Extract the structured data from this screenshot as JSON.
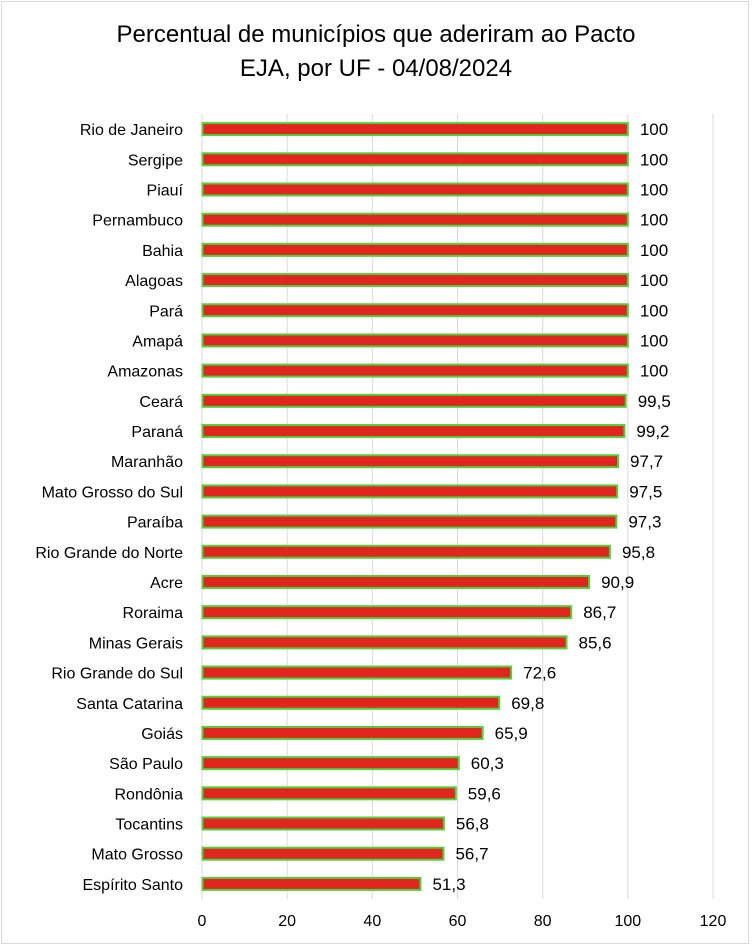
{
  "chart_data": {
    "type": "bar",
    "orientation": "horizontal",
    "title_lines": [
      "Percentual de municípios que aderiram ao Pacto",
      "EJA, por UF - 04/08/2024"
    ],
    "categories": [
      "Rio de Janeiro",
      "Sergipe",
      "Piauí",
      "Pernambuco",
      "Bahia",
      "Alagoas",
      "Pará",
      "Amapá",
      "Amazonas",
      "Ceará",
      "Paraná",
      "Maranhão",
      "Mato Grosso do Sul",
      "Paraíba",
      "Rio Grande do Norte",
      "Acre",
      "Roraima",
      "Minas Gerais",
      "Rio Grande do Sul",
      "Santa Catarina",
      "Goiás",
      "São Paulo",
      "Rondônia",
      "Tocantins",
      "Mato Grosso",
      "Espírito Santo"
    ],
    "values": [
      100,
      100,
      100,
      100,
      100,
      100,
      100,
      100,
      100,
      99.5,
      99.2,
      97.7,
      97.5,
      97.3,
      95.8,
      90.9,
      86.7,
      85.6,
      72.6,
      69.8,
      65.9,
      60.3,
      59.6,
      56.8,
      56.7,
      51.3
    ],
    "value_labels": [
      "100",
      "100",
      "100",
      "100",
      "100",
      "100",
      "100",
      "100",
      "100",
      "99,5",
      "99,2",
      "97,7",
      "97,5",
      "97,3",
      "95,8",
      "90,9",
      "86,7",
      "85,6",
      "72,6",
      "69,8",
      "65,9",
      "60,3",
      "59,6",
      "56,8",
      "56,7",
      "51,3"
    ],
    "xlim": [
      0,
      120
    ],
    "x_ticks": [
      0,
      20,
      40,
      60,
      80,
      100,
      120
    ],
    "x_tick_labels": [
      "0",
      "20",
      "40",
      "60",
      "80",
      "100",
      "120"
    ],
    "grid": true,
    "bar_fill": "#e0261f",
    "bar_border": "#4fd13a",
    "grid_color": "#d9d9d9"
  }
}
